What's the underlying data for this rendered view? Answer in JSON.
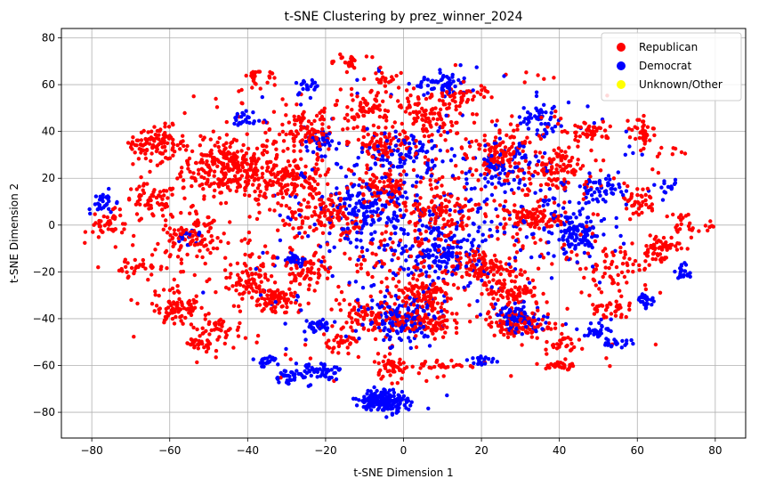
{
  "chart_data": {
    "type": "scatter",
    "title": "t-SNE Clustering by prez_winner_2024",
    "xlabel": "t-SNE Dimension 1",
    "ylabel": "t-SNE Dimension 2",
    "xlim": [
      -87.8,
      87.8
    ],
    "ylim": [
      -91,
      84
    ],
    "xticks": [
      "−80",
      "−60",
      "−40",
      "−20",
      "0",
      "20",
      "40",
      "60",
      "80"
    ],
    "yticks": [
      "−80",
      "−60",
      "−40",
      "−20",
      "0",
      "20",
      "40",
      "60",
      "80"
    ],
    "grid": true,
    "legend_position": "top-right",
    "legend": [
      {
        "label": "Republican",
        "color": "#ff0000"
      },
      {
        "label": "Democrat",
        "color": "#0000ff"
      },
      {
        "label": "Unknown/Other",
        "color": "#ffff00"
      }
    ],
    "series": [
      {
        "name": "Republican",
        "color": "#ff0000",
        "clusters": [
          {
            "x": -45,
            "y": 25,
            "rx": 10,
            "ry": 10,
            "n": 260
          },
          {
            "x": -62,
            "y": 35,
            "rx": 5,
            "ry": 6,
            "n": 70
          },
          {
            "x": -72,
            "y": 38,
            "rx": 4,
            "ry": 3,
            "n": 30
          },
          {
            "x": -65,
            "y": 10,
            "rx": 6,
            "ry": 6,
            "n": 60
          },
          {
            "x": -75,
            "y": 0,
            "rx": 5,
            "ry": 5,
            "n": 40
          },
          {
            "x": -68,
            "y": -18,
            "rx": 4,
            "ry": 4,
            "n": 30
          },
          {
            "x": -55,
            "y": -5,
            "rx": 6,
            "ry": 7,
            "n": 90
          },
          {
            "x": -58,
            "y": -35,
            "rx": 6,
            "ry": 7,
            "n": 80
          },
          {
            "x": -48,
            "y": -45,
            "rx": 5,
            "ry": 5,
            "n": 40
          },
          {
            "x": -52,
            "y": -51,
            "rx": 3,
            "ry": 2,
            "n": 25
          },
          {
            "x": -40,
            "y": -25,
            "rx": 5,
            "ry": 6,
            "n": 60
          },
          {
            "x": -33,
            "y": -32,
            "rx": 5,
            "ry": 4,
            "n": 70
          },
          {
            "x": -25,
            "y": -20,
            "rx": 5,
            "ry": 6,
            "n": 60
          },
          {
            "x": -30,
            "y": 20,
            "rx": 8,
            "ry": 8,
            "n": 140
          },
          {
            "x": -20,
            "y": 5,
            "rx": 6,
            "ry": 8,
            "n": 90
          },
          {
            "x": -25,
            "y": 40,
            "rx": 7,
            "ry": 7,
            "n": 90
          },
          {
            "x": -38,
            "y": 65,
            "rx": 3,
            "ry": 3,
            "n": 25
          },
          {
            "x": -15,
            "y": 70,
            "rx": 4,
            "ry": 3,
            "n": 25
          },
          {
            "x": -5,
            "y": 62,
            "rx": 4,
            "ry": 3,
            "n": 20
          },
          {
            "x": -10,
            "y": 50,
            "rx": 6,
            "ry": 6,
            "n": 70
          },
          {
            "x": -5,
            "y": 35,
            "rx": 6,
            "ry": 6,
            "n": 80
          },
          {
            "x": 5,
            "y": 45,
            "rx": 7,
            "ry": 8,
            "n": 100
          },
          {
            "x": 15,
            "y": 55,
            "rx": 6,
            "ry": 5,
            "n": 50
          },
          {
            "x": 25,
            "y": 30,
            "rx": 7,
            "ry": 7,
            "n": 100
          },
          {
            "x": 40,
            "y": 25,
            "rx": 6,
            "ry": 8,
            "n": 80
          },
          {
            "x": 48,
            "y": 40,
            "rx": 4,
            "ry": 4,
            "n": 40
          },
          {
            "x": 62,
            "y": 40,
            "rx": 3,
            "ry": 5,
            "n": 40
          },
          {
            "x": 60,
            "y": 10,
            "rx": 4,
            "ry": 6,
            "n": 40
          },
          {
            "x": 65,
            "y": -10,
            "rx": 5,
            "ry": 5,
            "n": 60
          },
          {
            "x": 72,
            "y": 0,
            "rx": 3,
            "ry": 4,
            "n": 20
          },
          {
            "x": 33,
            "y": 3,
            "rx": 6,
            "ry": 4,
            "n": 80
          },
          {
            "x": 20,
            "y": -18,
            "rx": 6,
            "ry": 5,
            "n": 90
          },
          {
            "x": 5,
            "y": -30,
            "rx": 6,
            "ry": 7,
            "n": 100
          },
          {
            "x": 5,
            "y": -42,
            "rx": 6,
            "ry": 4,
            "n": 90
          },
          {
            "x": 28,
            "y": -28,
            "rx": 6,
            "ry": 5,
            "n": 80
          },
          {
            "x": 30,
            "y": -42,
            "rx": 7,
            "ry": 5,
            "n": 100
          },
          {
            "x": 40,
            "y": -50,
            "rx": 4,
            "ry": 4,
            "n": 30
          },
          {
            "x": 52,
            "y": -36,
            "rx": 4,
            "ry": 3,
            "n": 30
          },
          {
            "x": 40,
            "y": -60,
            "rx": 4,
            "ry": 2,
            "n": 25
          },
          {
            "x": 10,
            "y": -60,
            "rx": 5,
            "ry": 2,
            "n": 25
          },
          {
            "x": -3,
            "y": -60,
            "rx": 4,
            "ry": 4,
            "n": 40
          },
          {
            "x": -8,
            "y": -40,
            "rx": 6,
            "ry": 6,
            "n": 80
          },
          {
            "x": -15,
            "y": -50,
            "rx": 4,
            "ry": 3,
            "n": 30
          },
          {
            "x": 10,
            "y": 5,
            "rx": 7,
            "ry": 7,
            "n": 80
          },
          {
            "x": -5,
            "y": 15,
            "rx": 6,
            "ry": 6,
            "n": 70
          },
          {
            "x": 0,
            "y": -10,
            "rx": 20,
            "ry": 40,
            "n": 260
          },
          {
            "x": 30,
            "y": 10,
            "rx": 25,
            "ry": 45,
            "n": 240
          },
          {
            "x": -40,
            "y": 0,
            "rx": 25,
            "ry": 45,
            "n": 240
          },
          {
            "x": 55,
            "y": -20,
            "rx": 8,
            "ry": 10,
            "n": 60
          },
          {
            "x": 75,
            "y": 35,
            "rx": 2,
            "ry": 2,
            "n": 8
          },
          {
            "x": 79,
            "y": 0,
            "rx": 2,
            "ry": 2,
            "n": 6
          }
        ]
      },
      {
        "name": "Democrat",
        "color": "#0000ff",
        "clusters": [
          {
            "x": -5,
            "y": -75,
            "rx": 5,
            "ry": 4,
            "n": 180
          },
          {
            "x": -22,
            "y": -62,
            "rx": 5,
            "ry": 3,
            "n": 50
          },
          {
            "x": -30,
            "y": -65,
            "rx": 3,
            "ry": 3,
            "n": 30
          },
          {
            "x": -35,
            "y": -58,
            "rx": 3,
            "ry": 2,
            "n": 20
          },
          {
            "x": -22,
            "y": -43,
            "rx": 3,
            "ry": 2,
            "n": 30
          },
          {
            "x": -22,
            "y": 35,
            "rx": 4,
            "ry": 4,
            "n": 40
          },
          {
            "x": -10,
            "y": 5,
            "rx": 8,
            "ry": 10,
            "n": 130
          },
          {
            "x": 0,
            "y": -40,
            "rx": 8,
            "ry": 8,
            "n": 120
          },
          {
            "x": 10,
            "y": -10,
            "rx": 10,
            "ry": 10,
            "n": 140
          },
          {
            "x": 10,
            "y": 60,
            "rx": 6,
            "ry": 4,
            "n": 60
          },
          {
            "x": 0,
            "y": 30,
            "rx": 8,
            "ry": 8,
            "n": 90
          },
          {
            "x": 25,
            "y": 25,
            "rx": 6,
            "ry": 8,
            "n": 80
          },
          {
            "x": 35,
            "y": 45,
            "rx": 5,
            "ry": 6,
            "n": 50
          },
          {
            "x": 45,
            "y": -5,
            "rx": 5,
            "ry": 8,
            "n": 110
          },
          {
            "x": 50,
            "y": 15,
            "rx": 5,
            "ry": 5,
            "n": 50
          },
          {
            "x": 30,
            "y": -40,
            "rx": 5,
            "ry": 5,
            "n": 80
          },
          {
            "x": 20,
            "y": -58,
            "rx": 3,
            "ry": 2,
            "n": 20
          },
          {
            "x": 50,
            "y": -45,
            "rx": 3,
            "ry": 3,
            "n": 30
          },
          {
            "x": 55,
            "y": -50,
            "rx": 3,
            "ry": 2,
            "n": 25
          },
          {
            "x": 62,
            "y": -32,
            "rx": 2,
            "ry": 3,
            "n": 25
          },
          {
            "x": 72,
            "y": -20,
            "rx": 2,
            "ry": 3,
            "n": 20
          },
          {
            "x": 68,
            "y": 15,
            "rx": 2,
            "ry": 3,
            "n": 15
          },
          {
            "x": -78,
            "y": 10,
            "rx": 3,
            "ry": 4,
            "n": 30
          },
          {
            "x": -55,
            "y": -5,
            "rx": 3,
            "ry": 3,
            "n": 20
          },
          {
            "x": -28,
            "y": -15,
            "rx": 3,
            "ry": 3,
            "n": 30
          },
          {
            "x": -40,
            "y": 45,
            "rx": 3,
            "ry": 3,
            "n": 25
          },
          {
            "x": -25,
            "y": 60,
            "rx": 3,
            "ry": 3,
            "n": 20
          },
          {
            "x": 0,
            "y": -5,
            "rx": 30,
            "ry": 45,
            "n": 300
          },
          {
            "x": 40,
            "y": 10,
            "rx": 15,
            "ry": 30,
            "n": 100
          }
        ]
      }
    ]
  }
}
